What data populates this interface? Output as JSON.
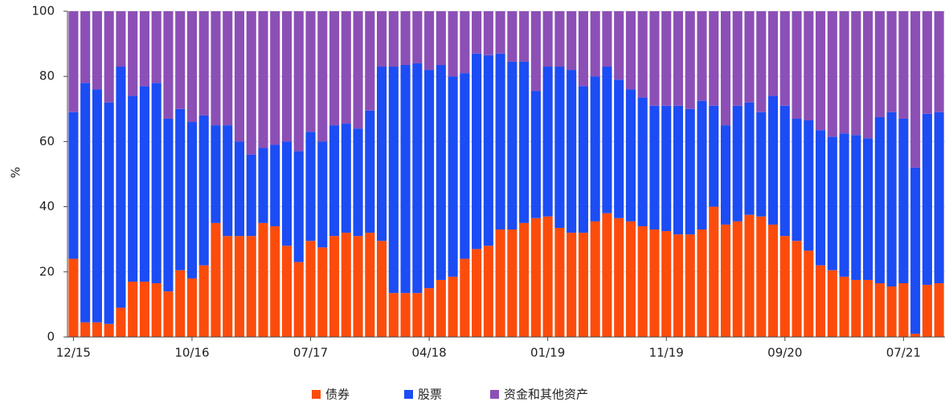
{
  "chart_data": {
    "type": "stacked_bar",
    "y_label": "%",
    "categories": [
      "12/15",
      null,
      null,
      null,
      null,
      null,
      null,
      null,
      null,
      null,
      "10/16",
      null,
      null,
      null,
      null,
      null,
      null,
      null,
      null,
      null,
      "07/17",
      null,
      null,
      null,
      null,
      null,
      null,
      null,
      null,
      null,
      "04/18",
      null,
      null,
      null,
      null,
      null,
      null,
      null,
      null,
      null,
      "01/19",
      null,
      null,
      null,
      null,
      null,
      null,
      null,
      null,
      null,
      "11/19",
      null,
      null,
      null,
      null,
      null,
      null,
      null,
      null,
      null,
      "09/20",
      null,
      null,
      null,
      null,
      null,
      null,
      null,
      null,
      null,
      "07/21",
      null,
      null,
      null
    ],
    "series": [
      {
        "name": "债券",
        "color": "#fc4c0c",
        "values": [
          24,
          4.5,
          4.5,
          4,
          9,
          17,
          17,
          16.5,
          14,
          20.5,
          18,
          22,
          35,
          31,
          31,
          31,
          35,
          34,
          28,
          23,
          29.5,
          27.5,
          31,
          32,
          31,
          32,
          29.5,
          13.5,
          13.5,
          13.5,
          15,
          17.5,
          18.5,
          24,
          27,
          28,
          33,
          33,
          35,
          36.5,
          37,
          33.5,
          32,
          32,
          35.5,
          38,
          36.5,
          35.5,
          34,
          33,
          32.5,
          31.5,
          31.5,
          33,
          40,
          34.5,
          35.5,
          37.5,
          37,
          34.5,
          31,
          29.5,
          26.5,
          22,
          20.5,
          18.5,
          17.5,
          17.5,
          16.5,
          15.5,
          16.5,
          1,
          16,
          16.5
        ]
      },
      {
        "name": "股票",
        "color": "#1c4cf4",
        "values": [
          45,
          73.5,
          71.5,
          68,
          74,
          57,
          60,
          61.5,
          53,
          49.5,
          48,
          46,
          30,
          34,
          29,
          25,
          23,
          25,
          32,
          34,
          33.5,
          32.5,
          34,
          33.5,
          33,
          37.5,
          53.5,
          69.5,
          70,
          70.5,
          67,
          66,
          61.5,
          57,
          60,
          58.5,
          54,
          51.5,
          49.5,
          39,
          46,
          49.5,
          50,
          45,
          44.5,
          45,
          42.5,
          40.5,
          39.5,
          38,
          38.5,
          39.5,
          38.5,
          39.5,
          31,
          30.5,
          35.5,
          34.5,
          32,
          39.5,
          40,
          37.5,
          40,
          41.5,
          41,
          44,
          44.5,
          43.5,
          51,
          53.5,
          50.5,
          51,
          52.5,
          52.5
        ]
      },
      {
        "name": "资金和其他资产",
        "color": "#8c4fb6",
        "values": [
          31,
          22,
          24,
          28,
          17,
          26,
          23,
          22,
          33,
          30,
          34,
          32,
          35,
          35,
          40,
          44,
          42,
          41,
          40,
          43,
          37,
          40,
          35,
          34.5,
          36,
          30.5,
          17,
          17,
          16.5,
          16,
          18,
          16.5,
          20,
          19,
          13,
          13.5,
          13,
          15.5,
          15.5,
          24.5,
          17,
          17,
          18,
          23,
          20,
          17,
          21,
          24,
          26.5,
          29,
          29,
          29,
          30,
          27.5,
          29,
          35,
          29,
          28,
          31,
          26,
          29,
          33,
          33.5,
          36.5,
          38.5,
          37.5,
          38,
          39,
          32.5,
          31,
          33,
          48,
          31.5,
          31
        ]
      }
    ],
    "ylim": [
      0,
      100
    ],
    "yticks": [
      0,
      20,
      40,
      60,
      80,
      100
    ],
    "grid": true
  }
}
